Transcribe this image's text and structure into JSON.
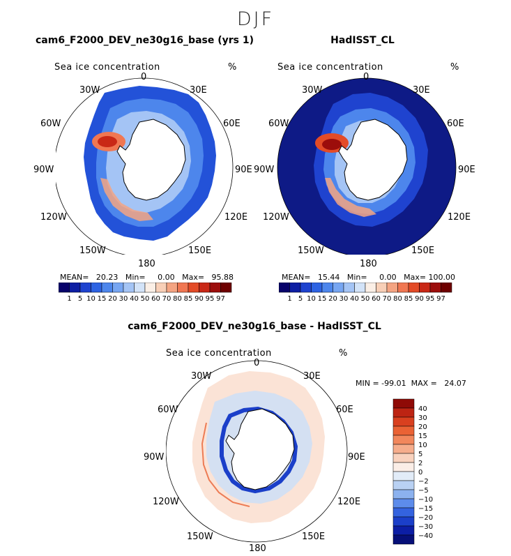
{
  "figure": {
    "season": "DJF",
    "variable_label": "Sea ice concentration",
    "units": "%"
  },
  "panels": [
    {
      "id": "model",
      "title": "cam6_F2000_DEV_ne30g16_base (yrs 1)",
      "variable_label": "Sea ice concentration",
      "units": "%",
      "stats": {
        "MEAN": "20.23",
        "Min": "0.00",
        "Max": "95.88"
      },
      "stats_text": "MEAN=   20.23   Min=     0.00   Max=   95.88"
    },
    {
      "id": "obs",
      "title": "HadISST_CL",
      "variable_label": "Sea ice concentration",
      "units": "%",
      "stats": {
        "MEAN": "15.44",
        "Min": "0.00",
        "Max": "100.00"
      },
      "stats_text": "MEAN=   15.44   Min=     0.00   Max= 100.00"
    },
    {
      "id": "diff",
      "title": "cam6_F2000_DEV_ne30g16_base - HadISST_CL",
      "variable_label": "Sea ice concentration",
      "units": "%",
      "stats": {
        "MIN": "-99.01",
        "MAX": "24.07"
      },
      "stats_text": "MIN = -99.01  MAX =   24.07"
    }
  ],
  "longitude_labels": [
    "0",
    "30E",
    "60E",
    "90E",
    "120E",
    "150E",
    "180",
    "150W",
    "120W",
    "90W",
    "60W",
    "30W"
  ],
  "colorbar_abs": {
    "levels": [
      "1",
      "5",
      "10",
      "15",
      "20",
      "30",
      "40",
      "50",
      "60",
      "70",
      "80",
      "85",
      "90",
      "95",
      "97"
    ],
    "colors": [
      "#08036b",
      "#0d1ea3",
      "#1f43cf",
      "#2d63e3",
      "#4d86ec",
      "#77a6f2",
      "#a4c4f5",
      "#d3e3f8",
      "#fbefe6",
      "#f8cfb7",
      "#f4a482",
      "#f07752",
      "#e34b27",
      "#c92816",
      "#9c0d0b",
      "#6e0000"
    ]
  },
  "colorbar_diff": {
    "levels": [
      "40",
      "30",
      "20",
      "15",
      "10",
      "5",
      "2",
      "0",
      "−2",
      "−5",
      "−10",
      "−15",
      "−20",
      "−30",
      "−40"
    ],
    "colors": [
      "#8f0a06",
      "#bd2413",
      "#d9401f",
      "#ea6234",
      "#f2875c",
      "#f6ad8c",
      "#f9d2be",
      "#fbeee7",
      "#e2ecf8",
      "#b9d1f3",
      "#8cb2ef",
      "#5d8ceb",
      "#3463df",
      "#1b3fc9",
      "#0c1ea5",
      "#060f78"
    ]
  },
  "colors": {
    "ocean_full_ice_free": "#0e1a86",
    "land": "#ffffff",
    "outline": "#000000"
  },
  "chart_data": [
    {
      "type": "heatmap",
      "projection": "south polar stereographic",
      "title": "cam6_F2000_DEV_ne30g16_base (yrs 1)",
      "variable": "Sea ice concentration",
      "units": "%",
      "mean": 20.23,
      "min": 0.0,
      "max": 95.88,
      "contour_levels": [
        1,
        5,
        10,
        15,
        20,
        30,
        40,
        50,
        60,
        70,
        80,
        85,
        90,
        95,
        97
      ]
    },
    {
      "type": "heatmap",
      "projection": "south polar stereographic",
      "title": "HadISST_CL",
      "variable": "Sea ice concentration",
      "units": "%",
      "mean": 15.44,
      "min": 0.0,
      "max": 100.0,
      "contour_levels": [
        1,
        5,
        10,
        15,
        20,
        30,
        40,
        50,
        60,
        70,
        80,
        85,
        90,
        95,
        97
      ]
    },
    {
      "type": "heatmap",
      "projection": "south polar stereographic",
      "title": "cam6_F2000_DEV_ne30g16_base - HadISST_CL",
      "variable": "Sea ice concentration",
      "units": "%",
      "min": -99.01,
      "max": 24.07,
      "contour_levels": [
        -40,
        -30,
        -20,
        -15,
        -10,
        -5,
        -2,
        0,
        2,
        5,
        10,
        15,
        20,
        30,
        40
      ]
    }
  ]
}
